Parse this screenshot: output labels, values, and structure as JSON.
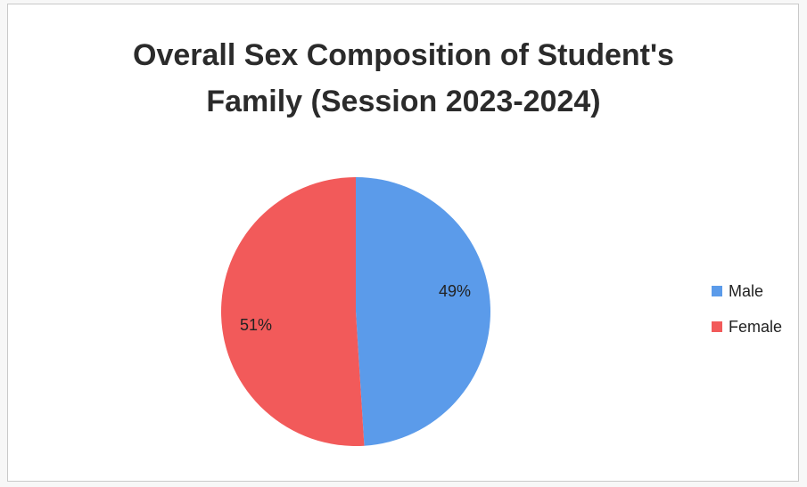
{
  "chart_data": {
    "type": "pie",
    "title_lines": [
      "Overall Sex Composition of Student's",
      "Family (Session 2023-2024)"
    ],
    "slices": [
      {
        "name": "Male",
        "value": 49,
        "label": "49%",
        "color": "#5b9bea"
      },
      {
        "name": "Female",
        "value": 51,
        "label": "51%",
        "color": "#f25a5a"
      }
    ],
    "legend_position": "right"
  }
}
